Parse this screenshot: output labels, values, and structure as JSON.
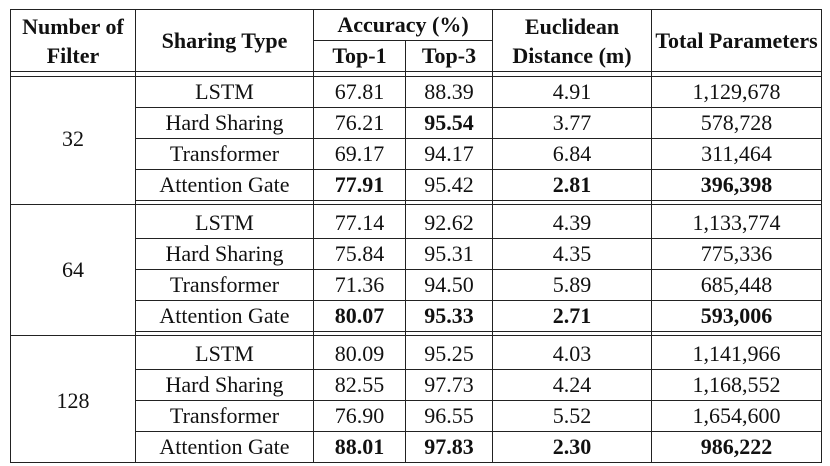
{
  "header": {
    "filter": "Number of Filter",
    "sharing": "Sharing Type",
    "accuracy": "Accuracy (%)",
    "top1": "Top-1",
    "top3": "Top-3",
    "distance": "Euclidean Distance (m)",
    "params": "Total Parameters"
  },
  "groups": [
    {
      "filter": "32",
      "rows": [
        {
          "type": "LSTM",
          "top1": "67.81",
          "top3": "88.39",
          "dist": "4.91",
          "params": "1,129,678"
        },
        {
          "type": "Hard Sharing",
          "top1": "76.21",
          "top3": "95.54",
          "dist": "3.77",
          "params": "578,728"
        },
        {
          "type": "Transformer",
          "top1": "69.17",
          "top3": "94.17",
          "dist": "6.84",
          "params": "311,464"
        },
        {
          "type": "Attention Gate",
          "top1": "77.91",
          "top3": "95.42",
          "dist": "2.81",
          "params": "396,398"
        }
      ]
    },
    {
      "filter": "64",
      "rows": [
        {
          "type": "LSTM",
          "top1": "77.14",
          "top3": "92.62",
          "dist": "4.39",
          "params": "1,133,774"
        },
        {
          "type": "Hard Sharing",
          "top1": "75.84",
          "top3": "95.31",
          "dist": "4.35",
          "params": "775,336"
        },
        {
          "type": "Transformer",
          "top1": "71.36",
          "top3": "94.50",
          "dist": "5.89",
          "params": "685,448"
        },
        {
          "type": "Attention Gate",
          "top1": "80.07",
          "top3": "95.33",
          "dist": "2.71",
          "params": "593,006"
        }
      ]
    },
    {
      "filter": "128",
      "rows": [
        {
          "type": "LSTM",
          "top1": "80.09",
          "top3": "95.25",
          "dist": "4.03",
          "params": "1,141,966"
        },
        {
          "type": "Hard Sharing",
          "top1": "82.55",
          "top3": "97.73",
          "dist": "4.24",
          "params": "1,168,552"
        },
        {
          "type": "Transformer",
          "top1": "76.90",
          "top3": "96.55",
          "dist": "5.52",
          "params": "1,654,600"
        },
        {
          "type": "Attention Gate",
          "top1": "88.01",
          "top3": "97.83",
          "dist": "2.30",
          "params": "986,222"
        }
      ]
    }
  ],
  "bold_cells": [
    [
      [
        false,
        false,
        false,
        false,
        false
      ],
      [
        false,
        false,
        true,
        false,
        false
      ],
      [
        false,
        false,
        false,
        false,
        false
      ],
      [
        false,
        true,
        false,
        true,
        true
      ]
    ],
    [
      [
        false,
        false,
        false,
        false,
        false
      ],
      [
        false,
        false,
        false,
        false,
        false
      ],
      [
        false,
        false,
        false,
        false,
        false
      ],
      [
        false,
        true,
        true,
        true,
        true
      ]
    ],
    [
      [
        false,
        false,
        false,
        false,
        false
      ],
      [
        false,
        false,
        false,
        false,
        false
      ],
      [
        false,
        false,
        false,
        false,
        false
      ],
      [
        false,
        true,
        true,
        true,
        true
      ]
    ]
  ]
}
